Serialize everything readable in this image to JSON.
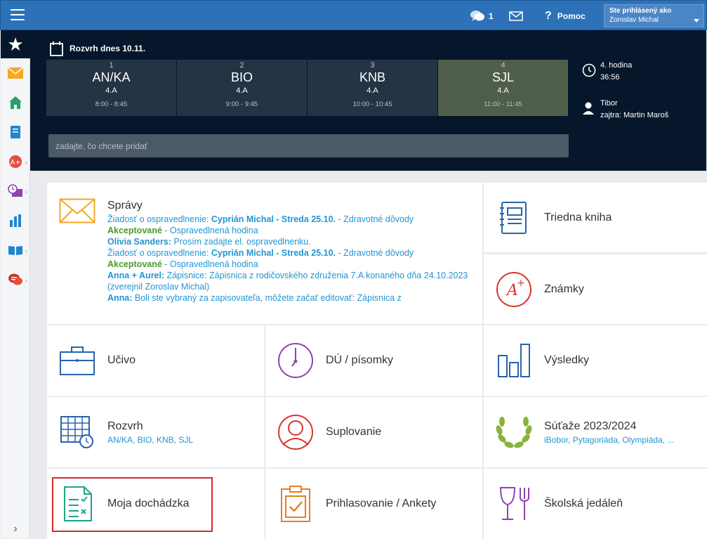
{
  "topbar": {
    "messages_count": "1",
    "help_label": "Pomoc",
    "user_label": "Ste prihlásený ako",
    "user_name": "Zoroslav Michal"
  },
  "schedule": {
    "title": "Rozvrh dnes 10.11.",
    "lessons": [
      {
        "num": "1",
        "subject": "AN/KA",
        "class": "4.A",
        "time": "8:00 - 8:45"
      },
      {
        "num": "2",
        "subject": "BIO",
        "class": "4.A",
        "time": "9:00 - 9:45"
      },
      {
        "num": "3",
        "subject": "KNB",
        "class": "4.A",
        "time": "10:00 - 10:45"
      },
      {
        "num": "4",
        "subject": "SJL",
        "class": "4.A",
        "time": "11:00 - 11:45"
      }
    ],
    "current_hour": "4. hodina",
    "countdown": "36:56",
    "person_name": "Tibor",
    "tomorrow": "zajtra: Martin Maroš"
  },
  "add_input": {
    "placeholder": "zadajte, čo chcete pridať"
  },
  "tiles": {
    "spravy": {
      "label": "Správy",
      "messages": [
        {
          "a": "Žiadosť o ospravedlnenie: ",
          "b": "Cyprián Michal - Streda 25.10.",
          "c": " - Zdravotné dôvody"
        },
        {
          "g": "Akceptované",
          "c": " - Ospravedlnená hodina"
        },
        {
          "b": "Olivia Sanders:",
          "c": " Prosím zadajte el. ospravedlnenku."
        },
        {
          "a": "Žiadosť o ospravedlnenie: ",
          "b": "Cyprián Michal - Streda 25.10.",
          "c": " - Zdravotné dôvody"
        },
        {
          "g": "Akceptované",
          "c": " - Ospravedlnená hodina"
        },
        {
          "b": "Anna + Aurel:",
          "c": " Zápisnice: Zápisnica z rodičovského združenia 7.A konaného dňa 24.10.2023 (zverejnil Zoroslav Michal)"
        },
        {
          "b": "Anna:",
          "c": " Boli ste vybraný za zapisovateľa, môžete začať editovať: Zápisnica z"
        }
      ]
    },
    "triedna_kniha": "Triedna kniha",
    "znamky": "Známky",
    "ucivo": "Učivo",
    "du": "DÚ / písomky",
    "vysledky": "Výsledky",
    "rozvrh": {
      "label": "Rozvrh",
      "sub": "AN/KA, BIO, KNB, SJL"
    },
    "suplovanie": "Suplovanie",
    "sutaze": {
      "label": "Súťaže 2023/2024",
      "sub": "iBobor, Pytagoriáda, Olympiáda, ..."
    },
    "dochadzka": "Moja dochádzka",
    "prihlasovanie": "Prihlasovanie / Ankety",
    "jedalen": "Školská jedáleň"
  },
  "colors": {
    "topbar": "#2d72b8",
    "dark": "#06172b",
    "link": "#2196d3",
    "accepted": "#4c9a2a",
    "highlight": "#d52b2b"
  }
}
